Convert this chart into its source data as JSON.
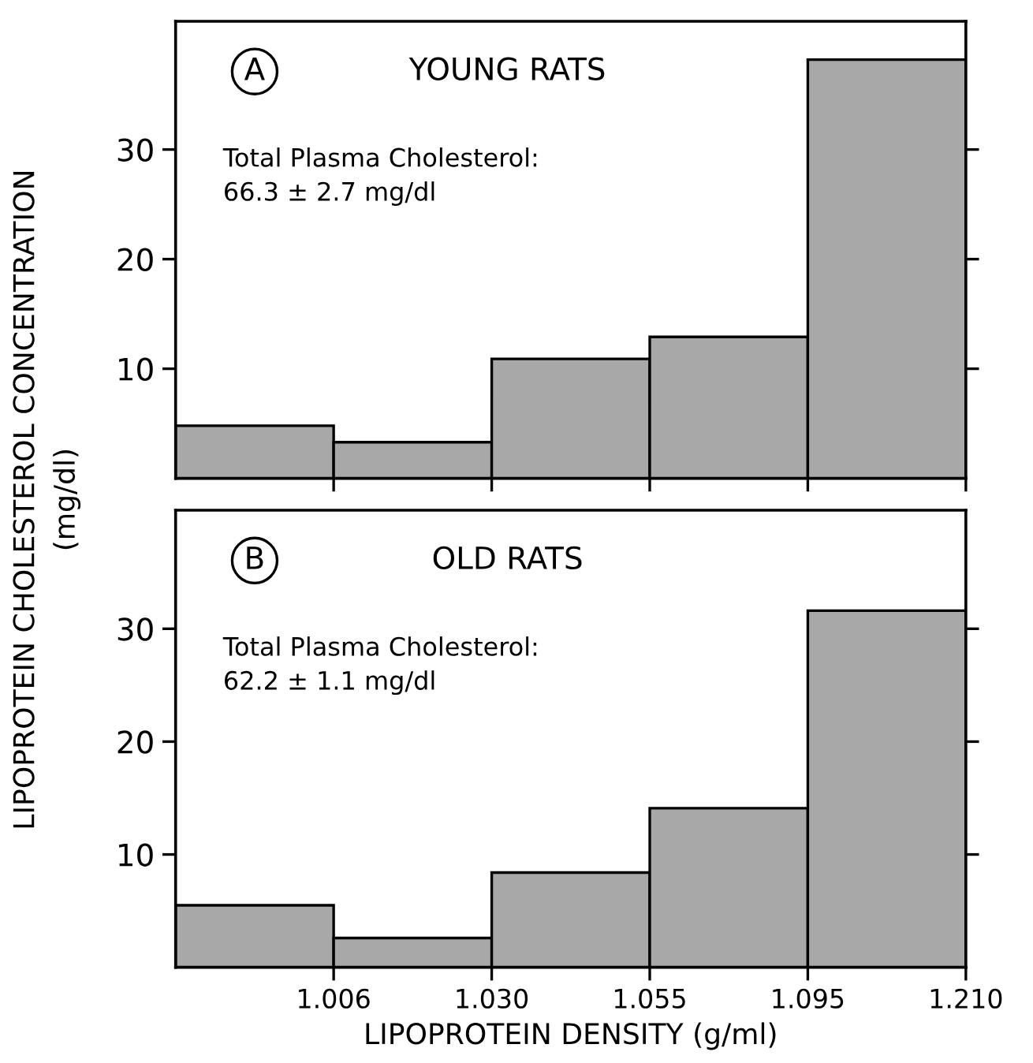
{
  "chart_data": [
    {
      "type": "bar",
      "title": "YOUNG RATS",
      "ylabel": "LIPOPROTEIN CHOLESTEROL CONCENTRATION\n(mg/dl)",
      "annotations": [
        "A",
        "Total Plasma Cholesterol:\n66.3 ± 2.7 mg/dl"
      ],
      "categories": [
        null,
        null,
        null,
        null,
        null
      ],
      "values": [
        4.8,
        3.3,
        10.9,
        12.9,
        38.2
      ],
      "color": "#a8a8a8",
      "ylim": [
        0,
        41.7
      ],
      "yticks": [
        10,
        20,
        30
      ]
    },
    {
      "type": "bar",
      "title": "OLD RATS",
      "xlabel": "LIPOPROTEIN DENSITY (g/ml)",
      "annotations": [
        "B",
        "Total Plasma Cholesterol:\n62.2 ± 1.1 mg/dl"
      ],
      "categories": [
        "1.006",
        "1.030",
        "1.055",
        "1.095",
        "1.210"
      ],
      "values": [
        5.5,
        2.6,
        8.4,
        14.1,
        31.6
      ],
      "color": "#a8a8a8",
      "ylim": [
        0,
        40.5
      ],
      "yticks": [
        10,
        20,
        30
      ]
    }
  ]
}
